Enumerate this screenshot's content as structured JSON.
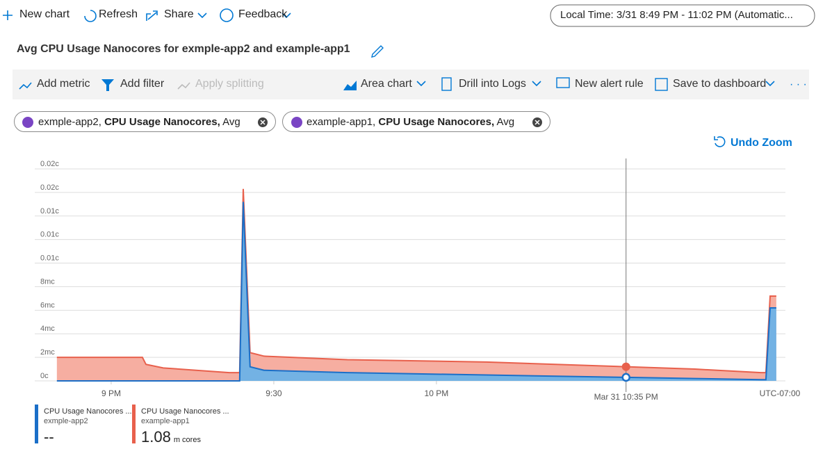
{
  "toolbar": {
    "items": [
      "New chart",
      "Refresh",
      "Share",
      "Feedback"
    ],
    "time_range": "Local Time: 3/31 8:49 PM - 11:02 PM (Automatic..."
  },
  "title": "Avg CPU Usage Nanocores for exmple-app2 and example-app1",
  "metric_toolbar": {
    "left": [
      "Add metric",
      "Add filter",
      "Apply splitting"
    ],
    "right": [
      "Area chart",
      "Drill into Logs",
      "New alert rule",
      "Save to dashboard"
    ]
  },
  "pills": [
    {
      "resource": "exmple-app2,",
      "metric": "CPU Usage Nanocores,",
      "aggregation": "Avg"
    },
    {
      "resource": "example-app1,",
      "metric": "CPU Usage Nanocores,",
      "aggregation": "Avg"
    }
  ],
  "undo_zoom": "Undo Zoom",
  "chart_data": {
    "type": "area",
    "x": [
      20.833,
      21.096,
      21.107,
      21.16,
      21.363,
      21.395,
      21.406,
      21.427,
      21.47,
      21.726,
      22.154,
      22.583,
      22.795,
      22.998,
      23.013,
      23.026,
      23.045
    ],
    "series": [
      {
        "name": "example-app1",
        "color": "#e8604c",
        "fill": "#f5aa9c",
        "values": [
          2.0,
          2.0,
          1.4,
          1.1,
          0.7,
          0.7,
          16.3,
          2.4,
          2.1,
          1.8,
          1.6,
          1.2,
          1.0,
          0.7,
          0.7,
          7.2,
          7.2
        ]
      },
      {
        "name": "exmple-app2",
        "color": "#1b6fc8",
        "fill": "#6cb2e8",
        "values": [
          0,
          0,
          0,
          0,
          0,
          0,
          15.2,
          1.2,
          0.9,
          0.7,
          0.5,
          0.3,
          0.2,
          0.1,
          0.1,
          6.2,
          6.2
        ]
      }
    ],
    "xlim": [
      20.765,
      23.073
    ],
    "xticks": [
      {
        "value": 21,
        "label": "9 PM"
      },
      {
        "value": 21.5,
        "label": "9:30"
      },
      {
        "value": 22,
        "label": "10 PM"
      }
    ],
    "timezone": "UTC-07:00",
    "crosshair_label": "Mar 31 10:35 PM",
    "ylim": [
      0,
      18
    ],
    "yticks": [
      {
        "value": 0,
        "label": "0c"
      },
      {
        "value": 2,
        "label": "2mc"
      },
      {
        "value": 4,
        "label": "4mc"
      },
      {
        "value": 6,
        "label": "6mc"
      },
      {
        "value": 8,
        "label": "8mc"
      },
      {
        "value": 10,
        "label": "0.01c"
      },
      {
        "value": 12,
        "label": "0.01c"
      },
      {
        "value": 14,
        "label": "0.01c"
      },
      {
        "value": 16,
        "label": "0.02c"
      },
      {
        "value": 18,
        "label": "0.02c"
      }
    ],
    "grid": true,
    "legend": [
      {
        "metric": "CPU Usage Nanocores ...",
        "resource": "exmple-app2",
        "value": "--",
        "color": "#1b6fc8"
      },
      {
        "metric": "CPU Usage Nanocores ...",
        "resource": "example-app1",
        "value": "1.08",
        "unit": "m cores",
        "color": "#e8604c"
      }
    ]
  }
}
